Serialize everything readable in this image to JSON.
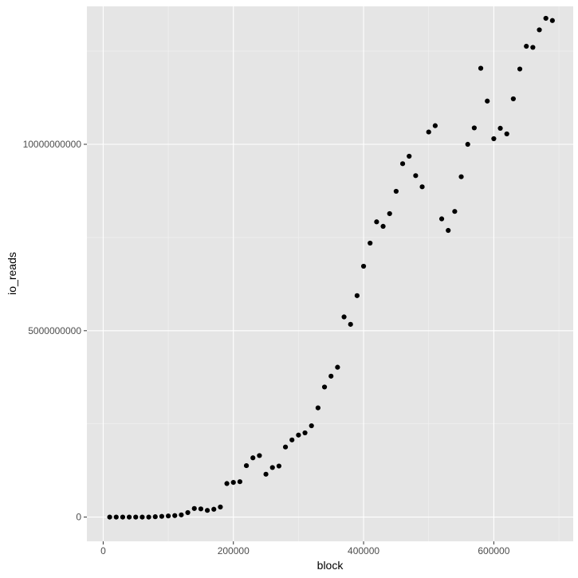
{
  "chart_data": {
    "type": "scatter",
    "title": "",
    "xlabel": "block",
    "ylabel": "io_reads",
    "xlim": [
      -25000,
      722000
    ],
    "ylim": [
      -650000000,
      13700000000
    ],
    "x_ticks": [
      0,
      200000,
      400000,
      600000
    ],
    "x_tick_labels": [
      "0",
      "200000",
      "400000",
      "600000"
    ],
    "y_ticks": [
      0,
      5000000000,
      10000000000
    ],
    "y_tick_labels": [
      "0",
      "5000000000",
      "10000000000"
    ],
    "grid": true,
    "legend": "none",
    "colors": {
      "panel_background": "#e5e5e5",
      "grid_major": "#ffffff",
      "grid_minor": "#f2f2f2",
      "point": "#000000",
      "tick_label": "#4d4d4d",
      "axis_title": "#000000"
    },
    "series": [
      {
        "x": [
          10000,
          20000,
          30000,
          40000,
          50000,
          60000,
          70000,
          80000,
          90000,
          100000,
          110000,
          120000,
          130000,
          140000,
          150000,
          160000,
          170000,
          180000,
          190000,
          200000,
          210000,
          220000,
          230000,
          240000,
          250000,
          260000,
          270000,
          280000,
          290000,
          300000,
          310000,
          320000,
          330000,
          340000,
          350000,
          360000,
          370000,
          380000,
          390000,
          400000,
          410000,
          420000,
          430000,
          440000,
          450000,
          460000,
          470000,
          480000,
          490000,
          500000,
          510000,
          520000,
          530000,
          540000,
          550000,
          560000,
          570000,
          580000,
          590000,
          600000,
          610000,
          620000,
          630000,
          640000,
          650000,
          660000,
          670000,
          680000,
          690000
        ],
        "y": [
          0,
          0,
          0,
          0,
          0,
          0,
          0,
          10000000,
          20000000,
          30000000,
          40000000,
          60000000,
          120000000,
          230000000,
          220000000,
          180000000,
          210000000,
          270000000,
          900000000,
          930000000,
          950000000,
          1380000000,
          1590000000,
          1650000000,
          1150000000,
          1330000000,
          1370000000,
          1880000000,
          2070000000,
          2200000000,
          2260000000,
          2450000000,
          2930000000,
          3490000000,
          3780000000,
          4020000000,
          5370000000,
          5170000000,
          5940000000,
          6730000000,
          7350000000,
          7920000000,
          7800000000,
          8140000000,
          8740000000,
          9480000000,
          9680000000,
          9160000000,
          8860000000,
          10330000000,
          10500000000,
          8000000000,
          7690000000,
          8200000000,
          9130000000,
          10000000000,
          10440000000,
          12040000000,
          11160000000,
          10150000000,
          10430000000,
          10280000000,
          11220000000,
          12020000000,
          12630000000,
          12600000000,
          13070000000,
          13380000000,
          13320000000
        ]
      }
    ]
  }
}
